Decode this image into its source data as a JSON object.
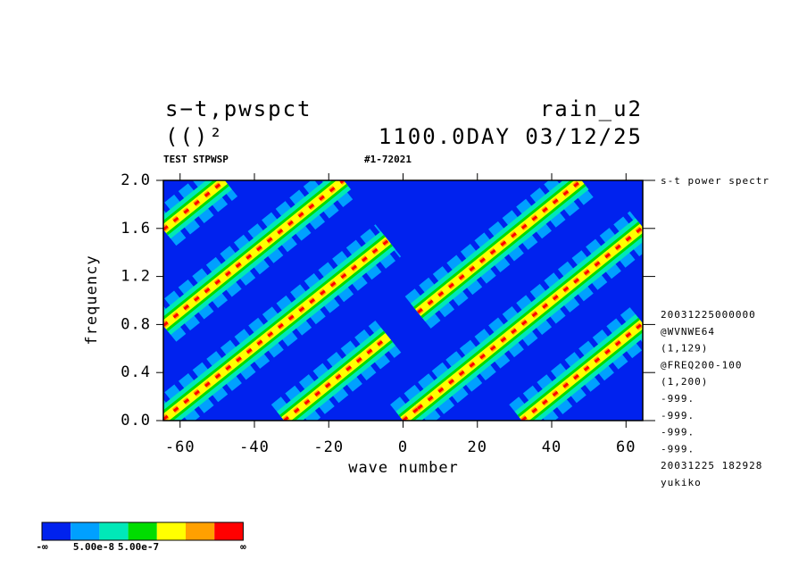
{
  "chart_data": {
    "type": "contour",
    "title_left": "s−t,pwspct",
    "title_right": "rain_u2",
    "unit": "(()²",
    "title_time": "1100.0DAY 03/12/25",
    "subtitle_left": "TEST STPWSP",
    "subtitle_right": "#1-72021",
    "right_label": "s-t power spectr",
    "notes": [
      "20031225000000",
      "@WVNWE64",
      "(1,129)",
      "@FREQ200-100",
      "(1,200)",
      "-999.",
      "-999.",
      "-999.",
      "-999.",
      "20031225 182928",
      "yukiko"
    ],
    "x_label": "wave number",
    "y_label": "frequency",
    "xlim": [
      -64.5,
      64.5
    ],
    "ylim": [
      0,
      2
    ],
    "xticks": [
      -60,
      -40,
      -20,
      0,
      20,
      40,
      60
    ],
    "yticks": [
      {
        "value": 0,
        "label": "0.0"
      },
      0.4,
      0.8,
      1.2,
      1.6,
      {
        "value": 2,
        "label": "2.0"
      }
    ],
    "background_color": "#0022ee",
    "ridges": [
      {
        "k": [
          -32,
          -4
        ],
        "f": [
          0,
          0.7
        ]
      },
      {
        "k": [
          -64.5,
          -4
        ],
        "f": [
          0.01,
          1.5
        ]
      },
      {
        "k": [
          -64.5,
          -16
        ],
        "f": [
          0.79,
          2
        ]
      },
      {
        "k": [
          -64.5,
          -48
        ],
        "f": [
          1.59,
          2
        ]
      },
      {
        "k": [
          0,
          20
        ],
        "f": [
          0,
          0.5
        ]
      },
      {
        "k": [
          32,
          64.5
        ],
        "f": [
          0,
          0.81
        ]
      },
      {
        "k": [
          4,
          64.5
        ],
        "f": [
          0.1,
          1.61
        ]
      },
      {
        "k": [
          4,
          48
        ],
        "f": [
          0.9,
          2
        ]
      }
    ],
    "colorbar": {
      "colors": [
        "#0022ee",
        "#00a0ff",
        "#00e8b8",
        "#00dd00",
        "#ffff00",
        "#ffa000",
        "#ff0000"
      ],
      "labels": [
        "-∞",
        "5.00e-8",
        "5.00e-7",
        "∞"
      ]
    }
  }
}
